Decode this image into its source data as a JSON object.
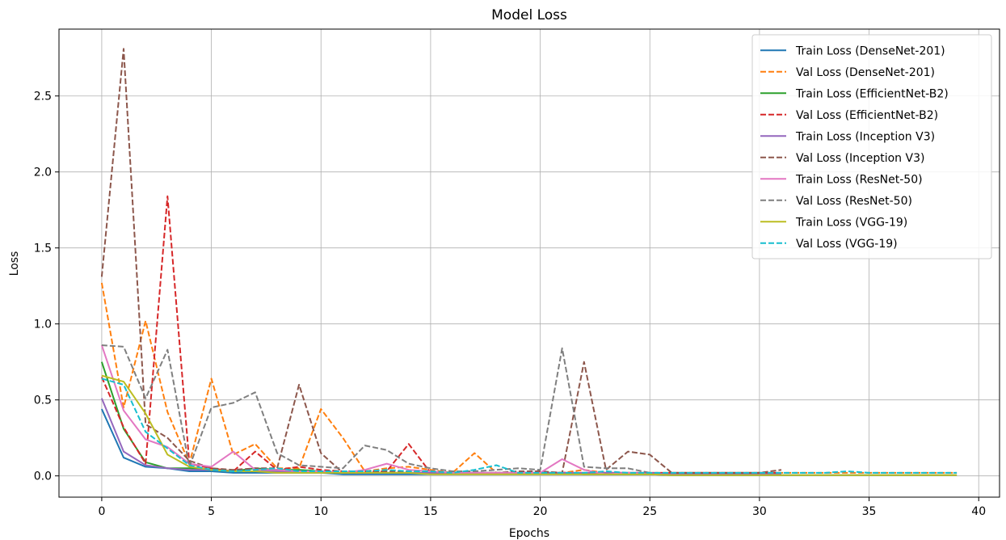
{
  "chart_data": {
    "type": "line",
    "title": "Model Loss",
    "xlabel": "Epochs",
    "ylabel": "Loss",
    "xlim": [
      -1.95,
      40.95
    ],
    "ylim": [
      -0.14,
      2.94
    ],
    "xticks": [
      0,
      5,
      10,
      15,
      20,
      25,
      30,
      35,
      40
    ],
    "yticks": [
      0.0,
      0.5,
      1.0,
      1.5,
      2.0,
      2.5
    ],
    "xtick_labels": [
      "0",
      "5",
      "10",
      "15",
      "20",
      "25",
      "30",
      "35",
      "40"
    ],
    "ytick_labels": [
      "0.0",
      "0.5",
      "1.0",
      "1.5",
      "2.0",
      "2.5"
    ],
    "grid": true,
    "legend_position": "top-right",
    "series": [
      {
        "name": "Train Loss (DenseNet-201)",
        "color": "#1f77b4",
        "style": "solid",
        "x": [
          0,
          1,
          2,
          3,
          4,
          5,
          6,
          7,
          8,
          9,
          10,
          11,
          12,
          13,
          14,
          15,
          16,
          17,
          18,
          19,
          20,
          21,
          22,
          23,
          24,
          25,
          26,
          27,
          28,
          29,
          30,
          31,
          32,
          33,
          34,
          35,
          36,
          37,
          38,
          39
        ],
        "y": [
          0.44,
          0.12,
          0.06,
          0.05,
          0.03,
          0.03,
          0.02,
          0.02,
          0.02,
          0.02,
          0.02,
          0.01,
          0.01,
          0.01,
          0.01,
          0.01,
          0.01,
          0.01,
          0.01,
          0.01,
          0.01,
          0.01,
          0.01,
          0.01,
          0.01,
          0.01,
          0.005,
          0.005,
          0.005,
          0.005,
          0.005,
          0.005,
          0.005,
          0.005,
          0.005,
          0.005,
          0.005,
          0.005,
          0.005,
          0.005
        ]
      },
      {
        "name": "Val Loss (DenseNet-201)",
        "color": "#ff7f0e",
        "style": "dashed",
        "x": [
          0,
          1,
          2,
          3,
          4,
          5,
          6,
          7,
          8,
          9,
          10,
          11,
          12,
          13,
          14,
          15,
          16,
          17,
          18,
          19,
          20,
          21,
          22,
          23,
          24,
          25,
          26,
          27,
          28,
          29,
          30,
          31,
          32,
          33,
          34,
          35,
          36,
          37,
          38,
          39
        ],
        "y": [
          1.27,
          0.45,
          1.02,
          0.42,
          0.08,
          0.64,
          0.14,
          0.21,
          0.05,
          0.05,
          0.44,
          0.25,
          0.03,
          0.05,
          0.06,
          0.04,
          0.02,
          0.15,
          0.02,
          0.02,
          0.02,
          0.02,
          0.04,
          0.02,
          0.02,
          0.02,
          0.02,
          0.02,
          0.02,
          0.02,
          0.02,
          0.02,
          0.02,
          0.02,
          0.02,
          0.02,
          0.02,
          0.02,
          0.02,
          0.02
        ]
      },
      {
        "name": "Train Loss (EfficientNet-B2)",
        "color": "#2ca02c",
        "style": "solid",
        "x": [
          0,
          1,
          2,
          3,
          4,
          5,
          6,
          7,
          8,
          9,
          10,
          11,
          12,
          13,
          14,
          15,
          16,
          17,
          18,
          19,
          20,
          21,
          22,
          23,
          24,
          25,
          26,
          27,
          28,
          29,
          30,
          31
        ],
        "y": [
          0.75,
          0.31,
          0.09,
          0.05,
          0.05,
          0.04,
          0.03,
          0.05,
          0.04,
          0.04,
          0.03,
          0.02,
          0.02,
          0.02,
          0.02,
          0.02,
          0.02,
          0.02,
          0.02,
          0.02,
          0.02,
          0.02,
          0.01,
          0.01,
          0.01,
          0.01,
          0.01,
          0.01,
          0.01,
          0.01,
          0.01,
          0.01
        ]
      },
      {
        "name": "Val Loss (EfficientNet-B2)",
        "color": "#d62728",
        "style": "dashed",
        "x": [
          0,
          1,
          2,
          3,
          4,
          5,
          6,
          7,
          8,
          9,
          10,
          11,
          12,
          13,
          14,
          15,
          16,
          17,
          18,
          19,
          20,
          21,
          22,
          23,
          24,
          25,
          26,
          27,
          28,
          29,
          30,
          31
        ],
        "y": [
          0.65,
          0.32,
          0.08,
          1.84,
          0.08,
          0.05,
          0.03,
          0.16,
          0.04,
          0.06,
          0.04,
          0.03,
          0.03,
          0.03,
          0.21,
          0.02,
          0.02,
          0.02,
          0.02,
          0.02,
          0.02,
          0.02,
          0.02,
          0.02,
          0.02,
          0.02,
          0.02,
          0.02,
          0.02,
          0.02,
          0.02,
          0.02
        ]
      },
      {
        "name": "Train Loss (Inception V3)",
        "color": "#9467bd",
        "style": "solid",
        "x": [
          0,
          1,
          2,
          3,
          4,
          5,
          6,
          7,
          8,
          9,
          10,
          11,
          12,
          13,
          14,
          15,
          16,
          17,
          18,
          19,
          20,
          21,
          22,
          23,
          24,
          25,
          26,
          27,
          28,
          29,
          30,
          31
        ],
        "y": [
          0.51,
          0.16,
          0.07,
          0.05,
          0.04,
          0.04,
          0.03,
          0.03,
          0.03,
          0.03,
          0.03,
          0.02,
          0.02,
          0.02,
          0.02,
          0.02,
          0.02,
          0.02,
          0.02,
          0.02,
          0.02,
          0.02,
          0.02,
          0.02,
          0.02,
          0.02,
          0.01,
          0.01,
          0.01,
          0.01,
          0.01,
          0.01
        ]
      },
      {
        "name": "Val Loss (Inception V3)",
        "color": "#8c564b",
        "style": "dashed",
        "x": [
          0,
          1,
          2,
          3,
          4,
          5,
          6,
          7,
          8,
          9,
          10,
          11,
          12,
          13,
          14,
          15,
          16,
          17,
          18,
          19,
          20,
          21,
          22,
          23,
          24,
          25,
          26,
          27,
          28,
          29,
          30,
          31
        ],
        "y": [
          1.31,
          2.81,
          0.34,
          0.25,
          0.1,
          0.05,
          0.04,
          0.05,
          0.05,
          0.6,
          0.15,
          0.02,
          0.02,
          0.03,
          0.03,
          0.03,
          0.02,
          0.02,
          0.02,
          0.03,
          0.03,
          0.02,
          0.75,
          0.04,
          0.16,
          0.14,
          0.02,
          0.02,
          0.02,
          0.02,
          0.02,
          0.04
        ]
      },
      {
        "name": "Train Loss (ResNet-50)",
        "color": "#e377c2",
        "style": "solid",
        "x": [
          0,
          1,
          2,
          3,
          4,
          5,
          6,
          7,
          8,
          9,
          10,
          11,
          12,
          13,
          14,
          15,
          16,
          17,
          18,
          19,
          20,
          21,
          22,
          23,
          24,
          25
        ],
        "y": [
          0.86,
          0.43,
          0.24,
          0.19,
          0.08,
          0.06,
          0.16,
          0.04,
          0.04,
          0.03,
          0.03,
          0.02,
          0.04,
          0.08,
          0.04,
          0.03,
          0.02,
          0.02,
          0.02,
          0.02,
          0.02,
          0.11,
          0.04,
          0.01,
          0.02,
          0.01
        ]
      },
      {
        "name": "Val Loss (ResNet-50)",
        "color": "#7f7f7f",
        "style": "dashed",
        "x": [
          0,
          1,
          2,
          3,
          4,
          5,
          6,
          7,
          8,
          9,
          10,
          11,
          12,
          13,
          14,
          15,
          16,
          17,
          18,
          19,
          20,
          21,
          22,
          23,
          24,
          25
        ],
        "y": [
          0.86,
          0.85,
          0.51,
          0.83,
          0.06,
          0.45,
          0.48,
          0.55,
          0.15,
          0.07,
          0.06,
          0.05,
          0.2,
          0.17,
          0.08,
          0.05,
          0.03,
          0.03,
          0.04,
          0.05,
          0.04,
          0.84,
          0.06,
          0.05,
          0.05,
          0.02
        ]
      },
      {
        "name": "Train Loss (VGG-19)",
        "color": "#bcbd22",
        "style": "solid",
        "x": [
          0,
          1,
          2,
          3,
          4,
          5,
          6,
          7,
          8,
          9,
          10,
          11,
          12,
          13,
          14,
          15,
          16,
          17,
          18,
          19,
          20,
          21,
          22,
          23,
          24,
          25,
          26,
          27,
          28,
          29,
          30,
          31,
          32,
          33,
          34,
          35,
          36,
          37,
          38,
          39
        ],
        "y": [
          0.66,
          0.62,
          0.41,
          0.14,
          0.06,
          0.04,
          0.03,
          0.03,
          0.02,
          0.02,
          0.02,
          0.02,
          0.02,
          0.02,
          0.02,
          0.01,
          0.01,
          0.01,
          0.01,
          0.01,
          0.01,
          0.01,
          0.01,
          0.01,
          0.01,
          0.01,
          0.005,
          0.005,
          0.005,
          0.005,
          0.005,
          0.005,
          0.005,
          0.005,
          0.005,
          0.005,
          0.005,
          0.005,
          0.005,
          0.005
        ]
      },
      {
        "name": "Val Loss (VGG-19)",
        "color": "#17becf",
        "style": "dashed",
        "x": [
          0,
          1,
          2,
          3,
          4,
          5,
          6,
          7,
          8,
          9,
          10,
          11,
          12,
          13,
          14,
          15,
          16,
          17,
          18,
          19,
          20,
          21,
          22,
          23,
          24,
          25,
          26,
          27,
          28,
          29,
          30,
          31,
          32,
          33,
          34,
          35,
          36,
          37,
          38,
          39
        ],
        "y": [
          0.64,
          0.6,
          0.29,
          0.18,
          0.07,
          0.04,
          0.03,
          0.04,
          0.05,
          0.03,
          0.03,
          0.03,
          0.03,
          0.04,
          0.03,
          0.03,
          0.02,
          0.04,
          0.07,
          0.02,
          0.02,
          0.02,
          0.02,
          0.03,
          0.02,
          0.02,
          0.02,
          0.02,
          0.02,
          0.02,
          0.02,
          0.02,
          0.02,
          0.02,
          0.03,
          0.02,
          0.02,
          0.02,
          0.02,
          0.02
        ]
      }
    ]
  }
}
